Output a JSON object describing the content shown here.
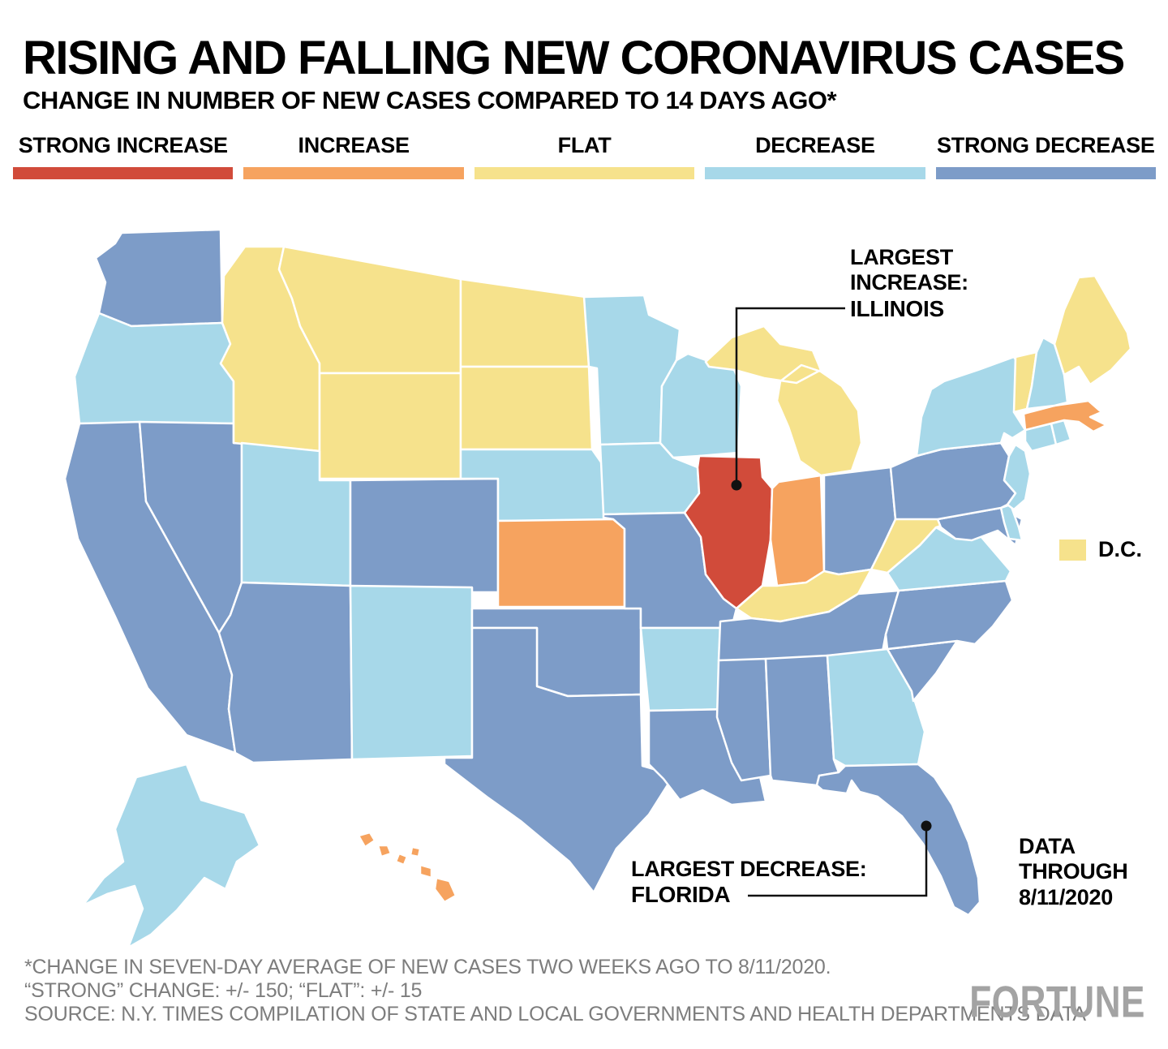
{
  "header": {
    "title": "RISING AND FALLING NEW CORONAVIRUS CASES",
    "subtitle": "CHANGE IN NUMBER OF NEW CASES COMPARED TO 14 DAYS AGO*"
  },
  "legend": {
    "items": [
      {
        "id": "strong_increase",
        "label": "STRONG INCREASE",
        "color": "#d14b3a"
      },
      {
        "id": "increase",
        "label": "INCREASE",
        "color": "#f6a35f"
      },
      {
        "id": "flat",
        "label": "FLAT",
        "color": "#f6e28c"
      },
      {
        "id": "decrease",
        "label": "DECREASE",
        "color": "#a7d8e9"
      },
      {
        "id": "strong_decrease",
        "label": "STRONG DECREASE",
        "color": "#7d9cc8"
      }
    ]
  },
  "annotations": {
    "largest_increase": {
      "line1": "LARGEST",
      "line2": "INCREASE:",
      "state": "ILLINOIS"
    },
    "largest_decrease": {
      "label": "LARGEST DECREASE:",
      "state": "FLORIDA"
    },
    "dc": {
      "label": "D.C.",
      "category": "flat"
    },
    "data_through": {
      "line1": "DATA",
      "line2": "THROUGH",
      "line3": "8/11/2020"
    }
  },
  "footnotes": [
    "*CHANGE IN SEVEN-DAY AVERAGE OF NEW CASES TWO WEEKS AGO TO 8/11/2020.",
    "“STRONG” CHANGE: +/- 150; “FLAT”: +/- 15",
    "SOURCE: N.Y. TIMES COMPILATION OF STATE AND LOCAL GOVERNMENTS AND HEALTH DEPARTMENTS DATA"
  ],
  "brand": "FORTUNE",
  "chart_data": {
    "type": "choropleth",
    "title": "RISING AND FALLING NEW CORONAVIRUS CASES",
    "categories": [
      "strong_increase",
      "increase",
      "flat",
      "decrease",
      "strong_decrease"
    ],
    "category_labels": [
      "STRONG INCREASE",
      "INCREASE",
      "FLAT",
      "DECREASE",
      "STRONG DECREASE"
    ],
    "colors": {
      "strong_increase": "#d14b3a",
      "increase": "#f6a35f",
      "flat": "#f6e28c",
      "decrease": "#a7d8e9",
      "strong_decrease": "#7d9cc8"
    },
    "states": {
      "WA": "strong_decrease",
      "OR": "decrease",
      "CA": "strong_decrease",
      "NV": "strong_decrease",
      "ID": "flat",
      "MT": "flat",
      "WY": "flat",
      "UT": "decrease",
      "CO": "strong_decrease",
      "AZ": "strong_decrease",
      "NM": "decrease",
      "ND": "flat",
      "SD": "flat",
      "NE": "decrease",
      "KS": "increase",
      "OK": "strong_decrease",
      "TX": "strong_decrease",
      "MN": "decrease",
      "IA": "decrease",
      "MO": "strong_decrease",
      "AR": "decrease",
      "LA": "strong_decrease",
      "WI": "decrease",
      "IL": "strong_increase",
      "IN": "increase",
      "MI": "flat",
      "OH": "strong_decrease",
      "KY": "flat",
      "TN": "strong_decrease",
      "MS": "strong_decrease",
      "AL": "strong_decrease",
      "GA": "decrease",
      "FL": "strong_decrease",
      "SC": "strong_decrease",
      "NC": "strong_decrease",
      "VA": "decrease",
      "WV": "flat",
      "MD": "strong_decrease",
      "DE": "decrease",
      "PA": "strong_decrease",
      "NY": "decrease",
      "NJ": "decrease",
      "CT": "decrease",
      "RI": "decrease",
      "MA": "increase",
      "VT": "flat",
      "NH": "decrease",
      "ME": "flat",
      "AK": "decrease",
      "HI": "increase",
      "DC": "flat"
    },
    "highlights": {
      "largest_increase": "IL",
      "largest_decrease": "FL"
    },
    "data_through": "8/11/2020"
  }
}
